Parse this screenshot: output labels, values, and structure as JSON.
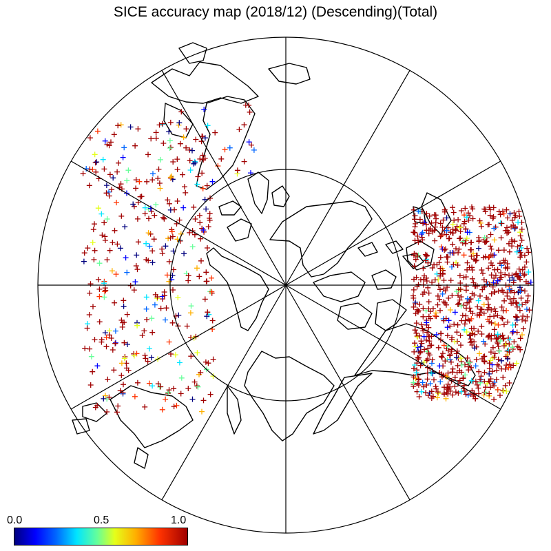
{
  "title": "SICE accuracy map (2018/12)  (Descending)(Total)",
  "colorbar": {
    "labels": {
      "min": "0.0",
      "mid": "0.5",
      "max": "1.0"
    },
    "range": [
      0.0,
      1.0
    ],
    "colormap": [
      "#00007f",
      "#0000ff",
      "#0066ff",
      "#00e5ff",
      "#66ff99",
      "#e5ff1a",
      "#ffb000",
      "#ff3300",
      "#a00000"
    ]
  },
  "map": {
    "projection": "north-polar-stereographic",
    "meridian_lines": 12,
    "latitude_circle": true,
    "marker": "+",
    "coastline_color": "#000000"
  }
}
